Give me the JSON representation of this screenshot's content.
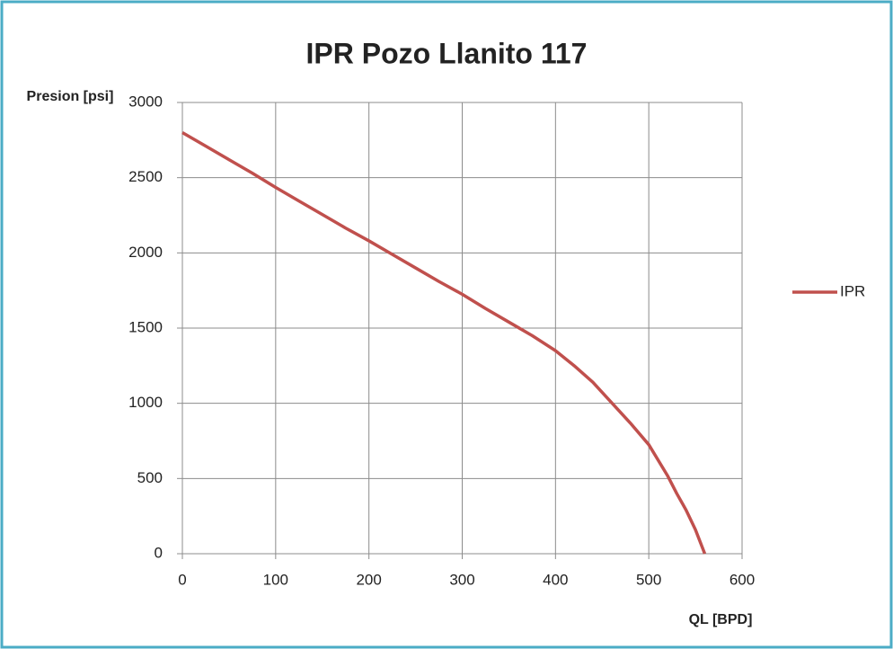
{
  "chart_data": {
    "type": "line",
    "title": "IPR Pozo Llanito 117",
    "xlabel": "QL [BPD]",
    "ylabel": "Presion [psi]",
    "x": [
      0,
      25,
      50,
      75,
      100,
      125,
      150,
      175,
      200,
      225,
      250,
      275,
      300,
      325,
      350,
      375,
      400,
      420,
      440,
      460,
      480,
      500,
      520,
      530,
      540,
      550,
      560
    ],
    "series": [
      {
        "name": "IPR",
        "color": "#c0504d",
        "values": [
          2800,
          2710,
          2620,
          2530,
          2435,
          2345,
          2255,
          2165,
          2080,
          1990,
          1900,
          1810,
          1725,
          1630,
          1540,
          1450,
          1350,
          1250,
          1140,
          1005,
          870,
          725,
          520,
          400,
          290,
          160,
          0
        ]
      }
    ],
    "xlim": [
      0,
      600
    ],
    "xticks": [
      0,
      100,
      200,
      300,
      400,
      500,
      600
    ],
    "ylim": [
      0,
      3000
    ],
    "yticks": [
      0,
      500,
      1000,
      1500,
      2000,
      2500,
      3000
    ],
    "grid": true,
    "legend": "right"
  }
}
